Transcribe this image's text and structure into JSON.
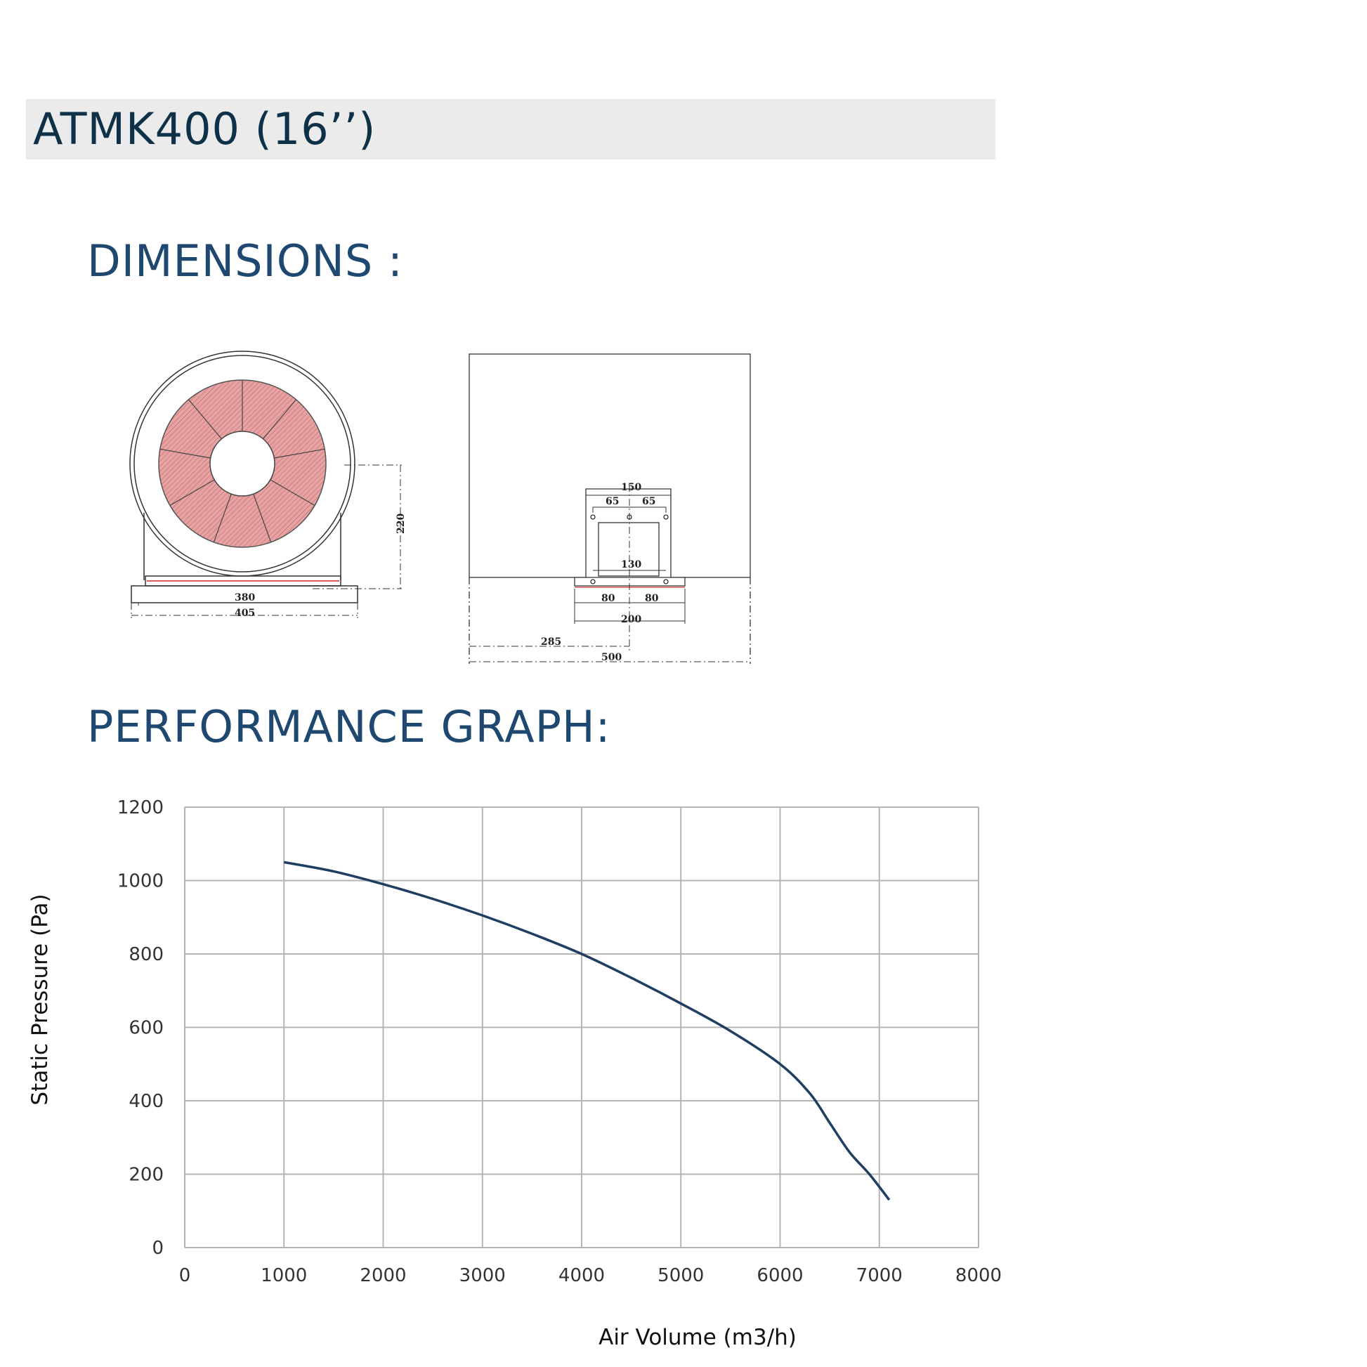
{
  "header": {
    "title": "ATMK400 (16’’)"
  },
  "sections": {
    "dimensions": "DIMENSIONS :",
    "performance": "PERFORMANCE GRAPH:"
  },
  "drawing": {
    "front_view": {
      "height": "220",
      "inner_width": "380",
      "outer_width": "405"
    },
    "side_view": {
      "bracket_width": "150",
      "hole_left": "65",
      "hole_right": "65",
      "inner": "130",
      "foot_left": "80",
      "foot_right": "80",
      "foot_width": "200",
      "offset": "285",
      "total_width": "500"
    }
  },
  "colors": {
    "title_bg": "#ebebeb",
    "title_text": "#0e3148",
    "heading": "#1f4870",
    "curve": "#1f3e62",
    "impeller": "#e29a9a"
  },
  "chart_data": {
    "type": "line",
    "xlabel": "Air Volume (m3/h)",
    "ylabel": "Static Pressure (Pa)",
    "xlim": [
      0,
      8000
    ],
    "ylim": [
      0,
      1200
    ],
    "xticks": [
      "0",
      "1000",
      "2000",
      "3000",
      "4000",
      "5000",
      "6000",
      "7000",
      "8000"
    ],
    "yticks": [
      "0",
      "200",
      "400",
      "600",
      "800",
      "1000",
      "1200"
    ],
    "grid": true,
    "series": [
      {
        "x": [
          1000,
          1500,
          2000,
          2500,
          3000,
          3500,
          4000,
          4500,
          5000,
          5500,
          6000,
          6300,
          6500,
          6700,
          6900,
          7100
        ],
        "y": [
          1050,
          1025,
          990,
          950,
          905,
          855,
          800,
          735,
          665,
          590,
          500,
          420,
          340,
          260,
          200,
          130
        ]
      }
    ]
  }
}
